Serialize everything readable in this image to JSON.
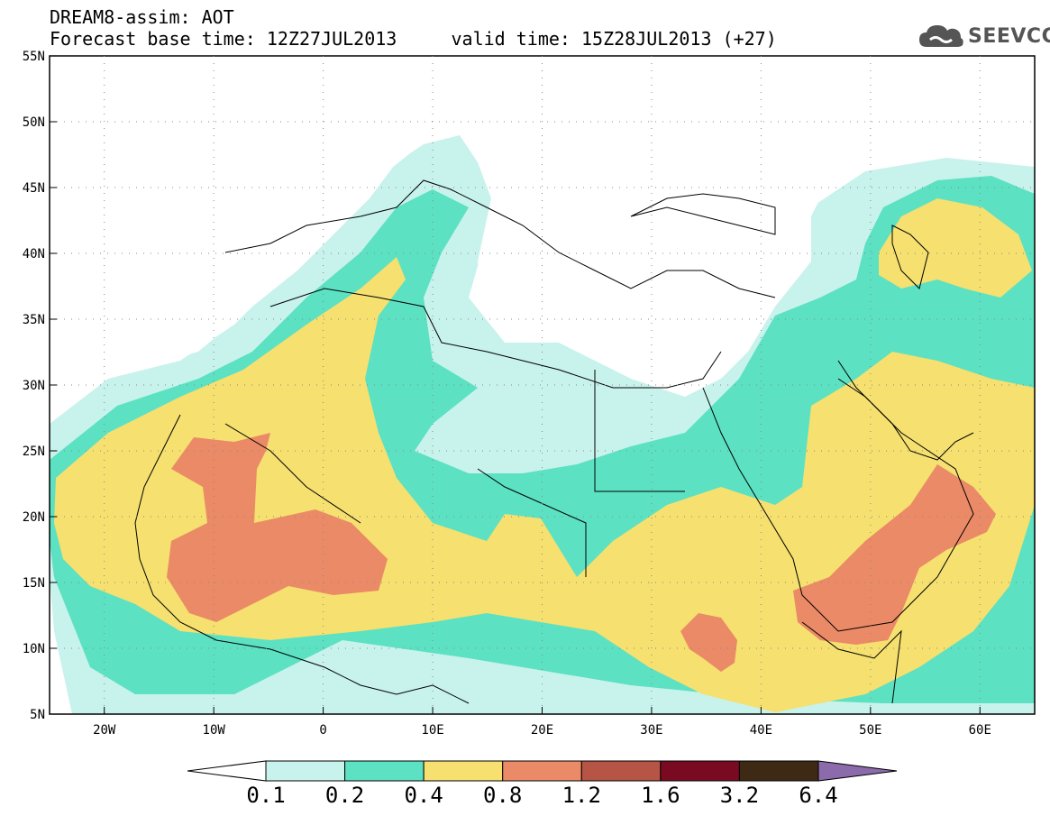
{
  "header": {
    "model_title": "DREAM8-assim: AOT",
    "forecast_line": "Forecast base time: 12Z27JUL2013     valid time: 15Z28JUL2013 (+27)"
  },
  "logo": {
    "icon": "cloud-logo-icon",
    "text": "SEEVCCC"
  },
  "map": {
    "lat_labels": [
      "55N",
      "50N",
      "45N",
      "40N",
      "35N",
      "30N",
      "25N",
      "20N",
      "15N",
      "10N",
      "5N"
    ],
    "lon_labels": [
      "20W",
      "10W",
      "0",
      "10E",
      "20E",
      "30E",
      "40E",
      "50E",
      "60E"
    ]
  },
  "colorbar": {
    "labels": [
      "0.1",
      "0.2",
      "0.4",
      "0.8",
      "1.2",
      "1.6",
      "3.2",
      "6.4"
    ],
    "colors": [
      "#ffffff",
      "#c8f2ec",
      "#5ce1c2",
      "#f5e070",
      "#eb8a66",
      "#b65545",
      "#7a0a22",
      "#3e2915",
      "#8b6bab"
    ]
  }
}
